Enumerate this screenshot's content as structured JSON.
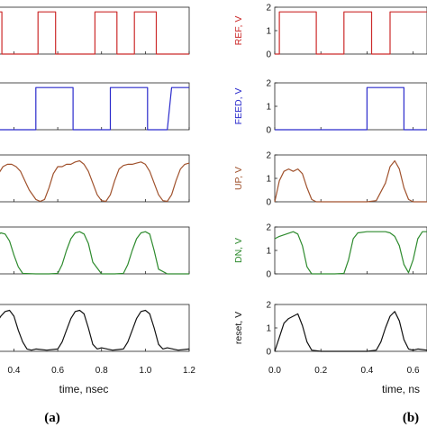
{
  "chart_data": [
    {
      "type": "line",
      "panel_label": "(a)",
      "xlabel": "time, nsec",
      "x_ticks": [
        "0.4",
        "0.6",
        "0.8",
        "1.0",
        "1.2"
      ],
      "xlim": [
        0.32,
        1.2
      ],
      "grid": false,
      "subplots": [
        {
          "name": "REF",
          "ylabel": "",
          "color": "#cc2b2b",
          "ylim": [
            0,
            2
          ],
          "x": [
            0.32,
            0.345,
            0.345,
            0.345,
            0.42,
            0.42,
            0.51,
            0.51,
            0.59,
            0.59,
            0.68,
            0.68,
            0.77,
            0.77,
            0.87,
            0.87,
            0.95,
            0.95,
            1.05,
            1.05,
            1.2
          ],
          "y": [
            1.8,
            1.8,
            0,
            0,
            0,
            0,
            0,
            1.8,
            1.8,
            0,
            0,
            0,
            0,
            1.8,
            1.8,
            0,
            0,
            1.8,
            1.8,
            0,
            0
          ]
        },
        {
          "name": "FEED",
          "ylabel": "",
          "color": "#2b2bcc",
          "ylim": [
            0,
            2
          ],
          "x": [
            0.32,
            0.5,
            0.5,
            0.67,
            0.67,
            0.84,
            0.84,
            1.01,
            1.01,
            1.1,
            1.12,
            1.2
          ],
          "y": [
            0,
            0,
            1.8,
            1.8,
            0,
            0,
            1.8,
            1.8,
            0,
            0,
            1.8,
            1.8
          ]
        },
        {
          "name": "UP",
          "ylabel": "",
          "color": "#a0522d",
          "ylim": [
            0,
            2
          ],
          "x": [
            0.32,
            0.33,
            0.35,
            0.37,
            0.39,
            0.41,
            0.43,
            0.45,
            0.47,
            0.5,
            0.52,
            0.54,
            0.56,
            0.58,
            0.6,
            0.62,
            0.64,
            0.66,
            0.68,
            0.7,
            0.72,
            0.74,
            0.76,
            0.78,
            0.8,
            0.82,
            0.84,
            0.86,
            0.88,
            0.9,
            0.92,
            0.94,
            0.96,
            0.98,
            1.0,
            1.02,
            1.04,
            1.06,
            1.08,
            1.1,
            1.12,
            1.14,
            1.16,
            1.18,
            1.2
          ],
          "y": [
            1.0,
            1.2,
            1.5,
            1.6,
            1.6,
            1.5,
            1.3,
            0.9,
            0.5,
            0.1,
            0.02,
            0.1,
            0.6,
            1.2,
            1.5,
            1.5,
            1.6,
            1.6,
            1.7,
            1.75,
            1.6,
            1.3,
            0.8,
            0.3,
            0.05,
            0.02,
            0.3,
            0.9,
            1.4,
            1.55,
            1.6,
            1.6,
            1.65,
            1.7,
            1.6,
            1.3,
            0.8,
            0.3,
            0.05,
            0.02,
            0.3,
            0.9,
            1.4,
            1.6,
            1.65
          ]
        },
        {
          "name": "DN",
          "ylabel": "",
          "color": "#2e8b2e",
          "ylim": [
            0,
            2
          ],
          "x": [
            0.32,
            0.34,
            0.36,
            0.38,
            0.4,
            0.42,
            0.44,
            0.5,
            0.56,
            0.6,
            0.62,
            0.64,
            0.66,
            0.68,
            0.7,
            0.72,
            0.74,
            0.76,
            0.8,
            0.86,
            0.9,
            0.92,
            0.94,
            0.96,
            0.98,
            1.0,
            1.02,
            1.04,
            1.06,
            1.1,
            1.2
          ],
          "y": [
            1.6,
            1.75,
            1.7,
            1.4,
            0.8,
            0.3,
            0.02,
            0,
            0,
            0.02,
            0.4,
            1.0,
            1.5,
            1.75,
            1.8,
            1.7,
            1.3,
            0.5,
            0,
            0,
            0.02,
            0.4,
            1.0,
            1.5,
            1.75,
            1.8,
            1.7,
            1.0,
            0.2,
            0,
            0
          ]
        },
        {
          "name": "reset",
          "ylabel": "",
          "color": "#111111",
          "ylim": [
            0,
            2
          ],
          "x": [
            0.32,
            0.34,
            0.36,
            0.38,
            0.4,
            0.42,
            0.44,
            0.46,
            0.48,
            0.5,
            0.55,
            0.6,
            0.62,
            0.64,
            0.66,
            0.68,
            0.7,
            0.72,
            0.74,
            0.76,
            0.78,
            0.8,
            0.85,
            0.9,
            0.92,
            0.94,
            0.96,
            0.98,
            1.0,
            1.02,
            1.04,
            1.06,
            1.08,
            1.1,
            1.15,
            1.2
          ],
          "y": [
            1.2,
            1.5,
            1.7,
            1.75,
            1.5,
            0.9,
            0.4,
            0.1,
            0.05,
            0.1,
            0.05,
            0.1,
            0.4,
            0.9,
            1.4,
            1.7,
            1.75,
            1.6,
            1.0,
            0.3,
            0.1,
            0.15,
            0.05,
            0.1,
            0.4,
            0.9,
            1.4,
            1.7,
            1.75,
            1.6,
            1.0,
            0.3,
            0.1,
            0.15,
            0.05,
            0.1
          ]
        }
      ]
    },
    {
      "type": "line",
      "panel_label": "(b)",
      "xlabel": "time, ns",
      "x_ticks": [
        "0.0",
        "0.2",
        "0.4",
        "0.6"
      ],
      "xlim": [
        0,
        0.66
      ],
      "y_ticks": [
        "0",
        "1",
        "2"
      ],
      "grid": false,
      "subplots": [
        {
          "name": "REF",
          "ylabel": "REF, V",
          "color": "#cc2b2b",
          "ylim": [
            0,
            2
          ],
          "x": [
            0,
            0.02,
            0.02,
            0.18,
            0.18,
            0.3,
            0.3,
            0.42,
            0.42,
            0.5,
            0.5,
            0.66
          ],
          "y": [
            0,
            0,
            1.8,
            1.8,
            0,
            0,
            1.8,
            1.8,
            0,
            0,
            1.8,
            1.8
          ]
        },
        {
          "name": "FEED",
          "ylabel": "FEED, V",
          "color": "#2b2bcc",
          "ylim": [
            0,
            2
          ],
          "x": [
            0,
            0.4,
            0.4,
            0.56,
            0.56,
            0.66
          ],
          "y": [
            0,
            0,
            1.8,
            1.8,
            0,
            0
          ]
        },
        {
          "name": "UP",
          "ylabel": "UP, V",
          "color": "#a0522d",
          "ylim": [
            0,
            2
          ],
          "x": [
            0,
            0.02,
            0.04,
            0.06,
            0.08,
            0.1,
            0.12,
            0.14,
            0.16,
            0.18,
            0.2,
            0.3,
            0.32,
            0.36,
            0.4,
            0.44,
            0.48,
            0.5,
            0.52,
            0.54,
            0.56,
            0.58,
            0.6,
            0.62,
            0.66
          ],
          "y": [
            0,
            0.9,
            1.3,
            1.4,
            1.3,
            1.4,
            1.2,
            0.6,
            0.1,
            0,
            0,
            0,
            0,
            0,
            0,
            0.05,
            0.8,
            1.5,
            1.75,
            1.4,
            0.6,
            0.1,
            0,
            0,
            0
          ]
        },
        {
          "name": "DN",
          "ylabel": "DN, V",
          "color": "#2e8b2e",
          "ylim": [
            0,
            2
          ],
          "x": [
            0,
            0.02,
            0.05,
            0.08,
            0.1,
            0.12,
            0.14,
            0.16,
            0.2,
            0.26,
            0.3,
            0.32,
            0.34,
            0.36,
            0.4,
            0.44,
            0.48,
            0.5,
            0.52,
            0.54,
            0.56,
            0.58,
            0.6,
            0.62,
            0.64,
            0.66
          ],
          "y": [
            1.5,
            1.6,
            1.7,
            1.8,
            1.7,
            1.2,
            0.3,
            0,
            0,
            0,
            0.02,
            0.6,
            1.5,
            1.75,
            1.8,
            1.8,
            1.8,
            1.75,
            1.6,
            1.2,
            0.4,
            0.05,
            0.6,
            1.5,
            1.8,
            1.8
          ]
        },
        {
          "name": "reset",
          "ylabel": "reset, V",
          "color": "#111111",
          "ylim": [
            0,
            2
          ],
          "x": [
            0,
            0.02,
            0.04,
            0.06,
            0.08,
            0.1,
            0.12,
            0.14,
            0.16,
            0.2,
            0.3,
            0.4,
            0.44,
            0.46,
            0.48,
            0.5,
            0.52,
            0.54,
            0.56,
            0.58,
            0.6,
            0.62,
            0.66
          ],
          "y": [
            0,
            0.6,
            1.2,
            1.4,
            1.5,
            1.6,
            1.1,
            0.4,
            0.05,
            0,
            0,
            0,
            0.05,
            0.4,
            1.0,
            1.5,
            1.7,
            1.3,
            0.5,
            0.1,
            0.05,
            0.1,
            0.05
          ]
        }
      ]
    }
  ]
}
